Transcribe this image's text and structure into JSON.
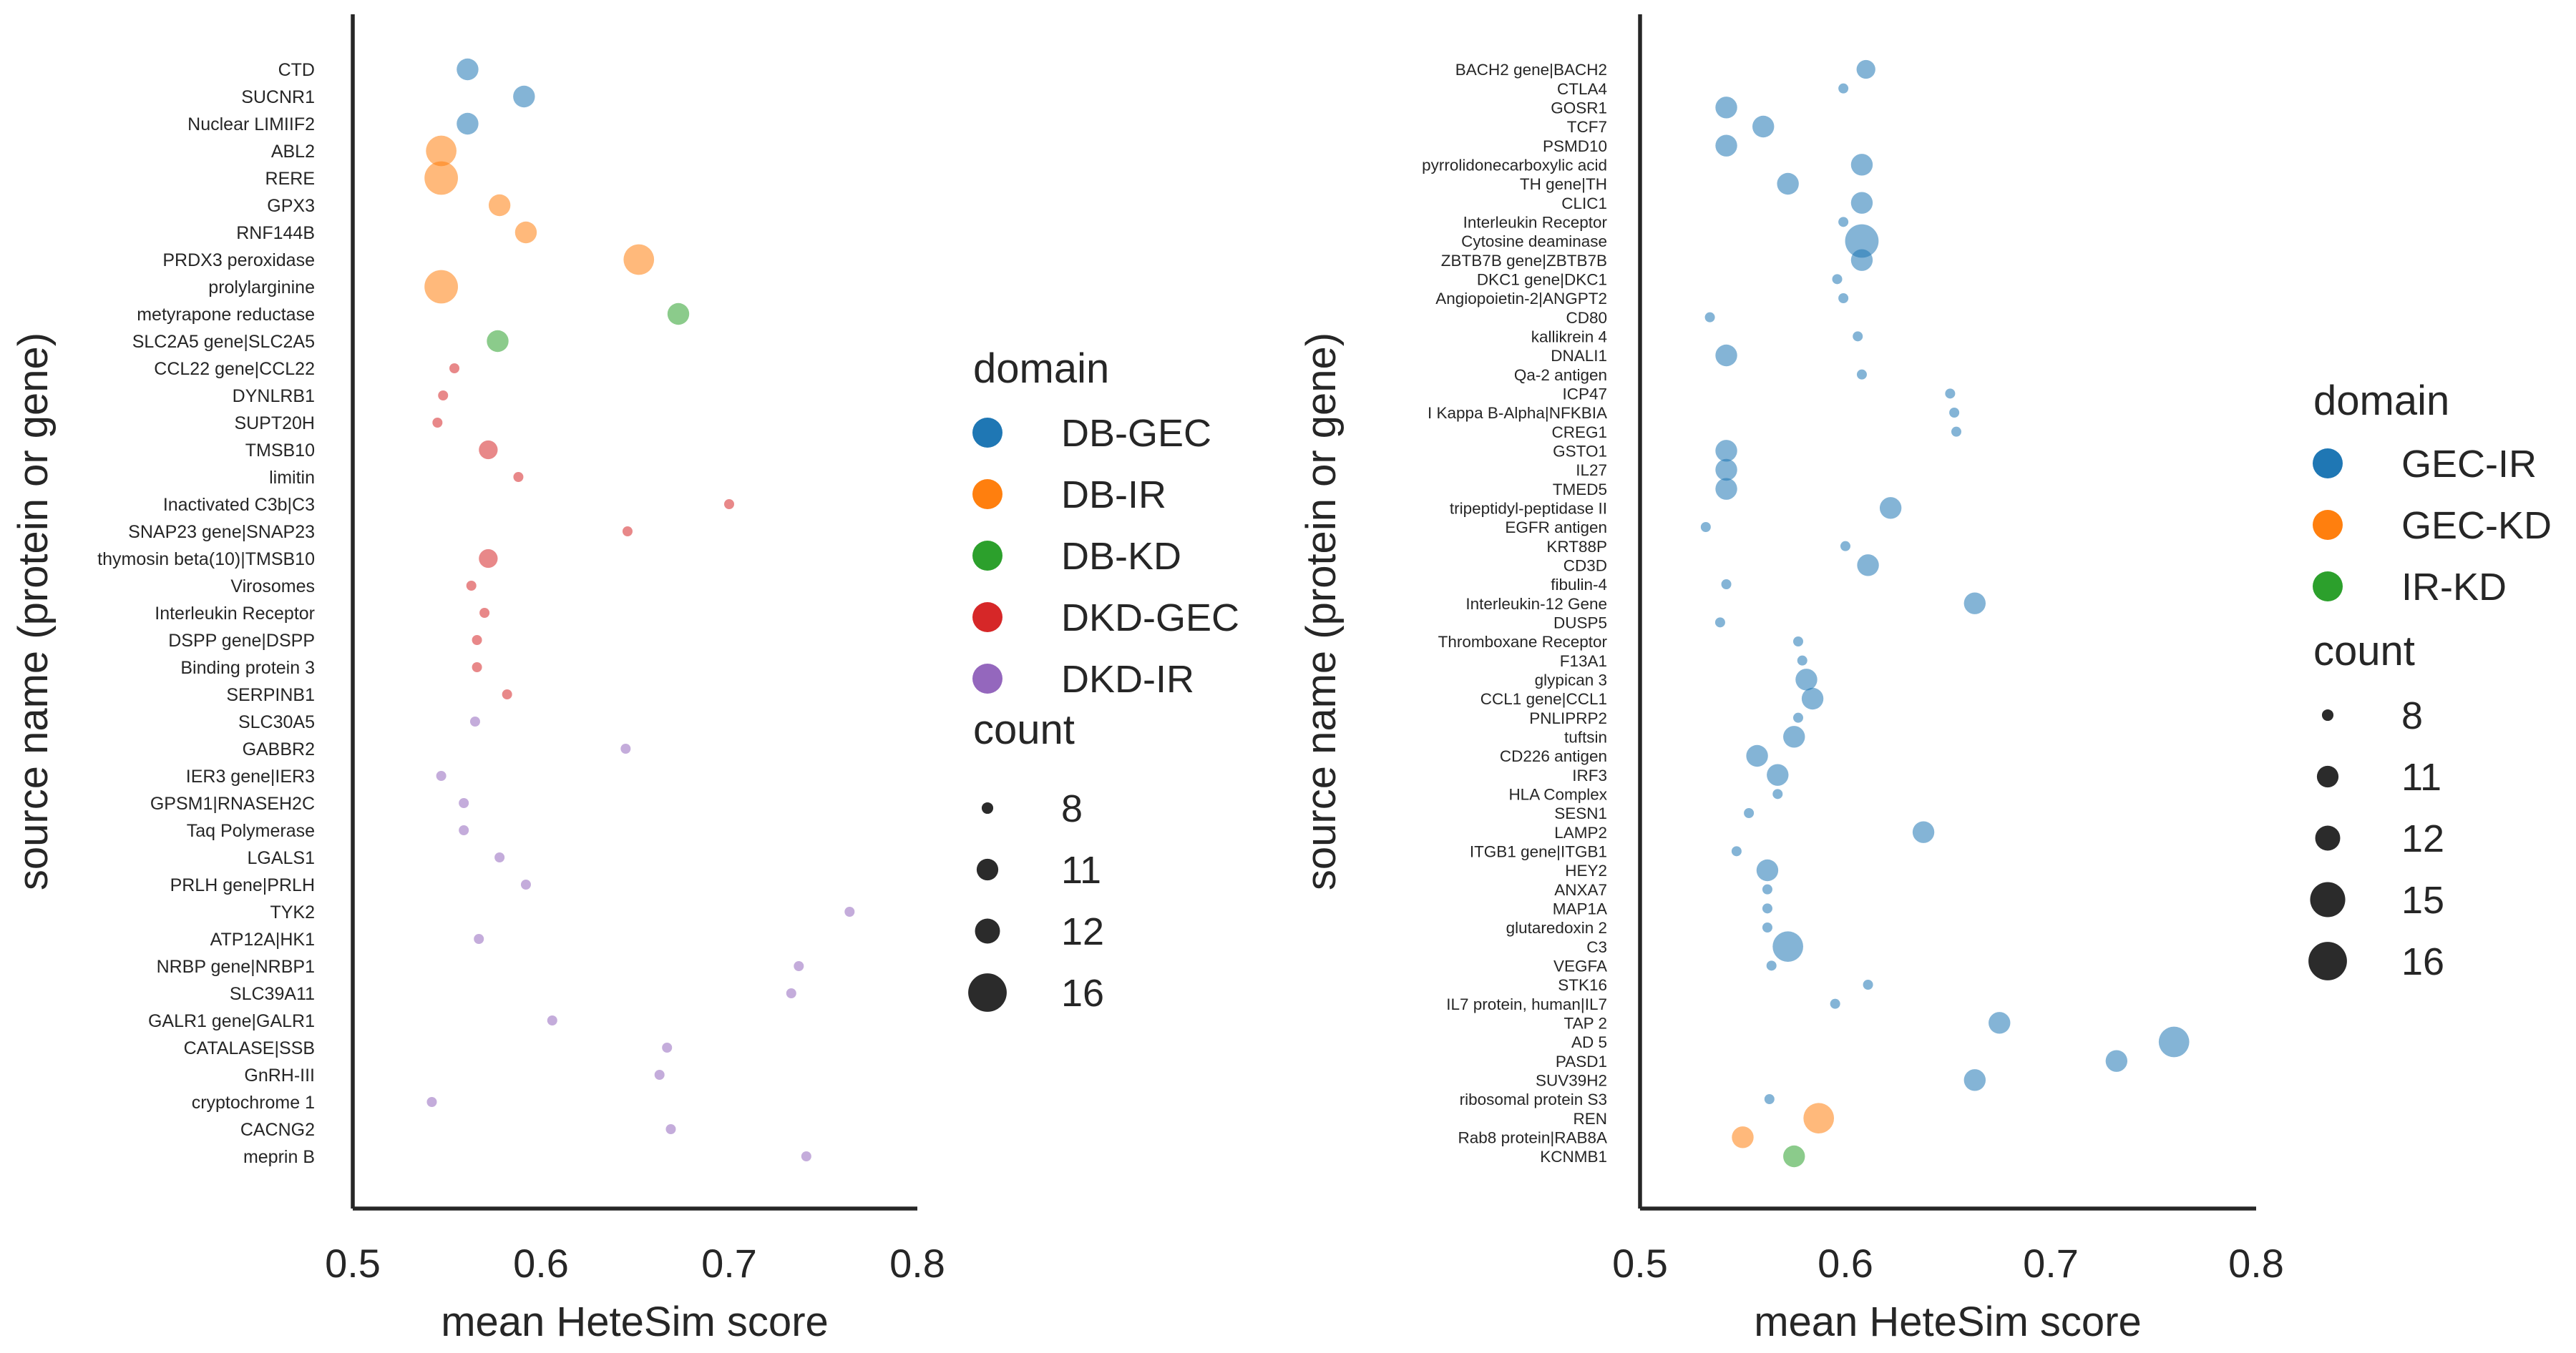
{
  "figure": {
    "colors": {
      "DB-GEC": "#1f77b4",
      "DB-IR": "#ff7f0e",
      "DB-KD": "#2ca02c",
      "DKD-GEC": "#d62728",
      "DKD-IR": "#9467bd",
      "GEC-IR": "#1f77b4",
      "GEC-KD": "#ff7f0e",
      "IR-KD": "#2ca02c"
    }
  },
  "chart_data": [
    {
      "type": "scatter",
      "title": "",
      "xlabel": "mean HeteSim score",
      "ylabel": "source name (protein or gene)",
      "xlim": [
        0.5,
        0.8
      ],
      "xticks": [
        "0.5",
        "0.6",
        "0.7",
        "0.8"
      ],
      "xtick_values": [
        0.5,
        0.6,
        0.7,
        0.8
      ],
      "grid": false,
      "legend": {
        "position": "right",
        "domain_title": "domain",
        "domains": [
          "DB-GEC",
          "DB-IR",
          "DB-KD",
          "DKD-GEC",
          "DKD-IR"
        ],
        "count_title": "count",
        "counts": [
          8,
          11,
          12,
          16
        ]
      },
      "points": [
        {
          "label": "CTD",
          "x": 0.561,
          "domain": "DB-GEC",
          "count": 12
        },
        {
          "label": "SUCNR1",
          "x": 0.591,
          "domain": "DB-GEC",
          "count": 12
        },
        {
          "label": "Nuclear LIMIIF2",
          "x": 0.561,
          "domain": "DB-GEC",
          "count": 12
        },
        {
          "label": "ABL2",
          "x": 0.547,
          "domain": "DB-IR",
          "count": 15
        },
        {
          "label": "RERE",
          "x": 0.547,
          "domain": "DB-IR",
          "count": 16
        },
        {
          "label": "GPX3",
          "x": 0.578,
          "domain": "DB-IR",
          "count": 12
        },
        {
          "label": "RNF144B",
          "x": 0.592,
          "domain": "DB-IR",
          "count": 12
        },
        {
          "label": "PRDX3 peroxidase",
          "x": 0.652,
          "domain": "DB-IR",
          "count": 15
        },
        {
          "label": "prolylarginine",
          "x": 0.547,
          "domain": "DB-IR",
          "count": 16
        },
        {
          "label": "metyrapone reductase",
          "x": 0.673,
          "domain": "DB-KD",
          "count": 12
        },
        {
          "label": "SLC2A5 gene|SLC2A5",
          "x": 0.577,
          "domain": "DB-KD",
          "count": 12
        },
        {
          "label": "CCL22 gene|CCL22",
          "x": 0.554,
          "domain": "DKD-GEC",
          "count": 8
        },
        {
          "label": "DYNLRB1",
          "x": 0.548,
          "domain": "DKD-GEC",
          "count": 8
        },
        {
          "label": "SUPT20H",
          "x": 0.545,
          "domain": "DKD-GEC",
          "count": 8
        },
        {
          "label": "TMSB10",
          "x": 0.572,
          "domain": "DKD-GEC",
          "count": 11
        },
        {
          "label": "limitin",
          "x": 0.588,
          "domain": "DKD-GEC",
          "count": 8
        },
        {
          "label": "Inactivated C3b|C3",
          "x": 0.7,
          "domain": "DKD-GEC",
          "count": 8
        },
        {
          "label": "SNAP23 gene|SNAP23",
          "x": 0.646,
          "domain": "DKD-GEC",
          "count": 8
        },
        {
          "label": "thymosin beta(10)|TMSB10",
          "x": 0.572,
          "domain": "DKD-GEC",
          "count": 11
        },
        {
          "label": "Virosomes",
          "x": 0.563,
          "domain": "DKD-GEC",
          "count": 8
        },
        {
          "label": "Interleukin Receptor",
          "x": 0.57,
          "domain": "DKD-GEC",
          "count": 8
        },
        {
          "label": "DSPP gene|DSPP",
          "x": 0.566,
          "domain": "DKD-GEC",
          "count": 8
        },
        {
          "label": "Binding protein 3",
          "x": 0.566,
          "domain": "DKD-GEC",
          "count": 8
        },
        {
          "label": "SERPINB1",
          "x": 0.582,
          "domain": "DKD-GEC",
          "count": 8
        },
        {
          "label": "SLC30A5",
          "x": 0.565,
          "domain": "DKD-IR",
          "count": 8
        },
        {
          "label": "GABBR2",
          "x": 0.645,
          "domain": "DKD-IR",
          "count": 8
        },
        {
          "label": "IER3 gene|IER3",
          "x": 0.547,
          "domain": "DKD-IR",
          "count": 8
        },
        {
          "label": "GPSM1|RNASEH2C",
          "x": 0.559,
          "domain": "DKD-IR",
          "count": 8
        },
        {
          "label": "Taq Polymerase",
          "x": 0.559,
          "domain": "DKD-IR",
          "count": 8
        },
        {
          "label": "LGALS1",
          "x": 0.578,
          "domain": "DKD-IR",
          "count": 8
        },
        {
          "label": "PRLH gene|PRLH",
          "x": 0.592,
          "domain": "DKD-IR",
          "count": 8
        },
        {
          "label": "TYK2",
          "x": 0.764,
          "domain": "DKD-IR",
          "count": 8
        },
        {
          "label": "ATP12A|HK1",
          "x": 0.567,
          "domain": "DKD-IR",
          "count": 8
        },
        {
          "label": "NRBP gene|NRBP1",
          "x": 0.737,
          "domain": "DKD-IR",
          "count": 8
        },
        {
          "label": "SLC39A11",
          "x": 0.733,
          "domain": "DKD-IR",
          "count": 8
        },
        {
          "label": "GALR1 gene|GALR1",
          "x": 0.606,
          "domain": "DKD-IR",
          "count": 8
        },
        {
          "label": "CATALASE|SSB",
          "x": 0.667,
          "domain": "DKD-IR",
          "count": 8
        },
        {
          "label": "GnRH-III",
          "x": 0.663,
          "domain": "DKD-IR",
          "count": 8
        },
        {
          "label": "cryptochrome 1",
          "x": 0.542,
          "domain": "DKD-IR",
          "count": 8
        },
        {
          "label": "CACNG2",
          "x": 0.669,
          "domain": "DKD-IR",
          "count": 8
        },
        {
          "label": "meprin B",
          "x": 0.741,
          "domain": "DKD-IR",
          "count": 8
        }
      ]
    },
    {
      "type": "scatter",
      "title": "",
      "xlabel": "mean HeteSim score",
      "ylabel": "source name (protein or gene)",
      "xlim": [
        0.5,
        0.8
      ],
      "xticks": [
        "0.5",
        "0.6",
        "0.7",
        "0.8"
      ],
      "xtick_values": [
        0.5,
        0.6,
        0.7,
        0.8
      ],
      "grid": false,
      "legend": {
        "position": "right",
        "domain_title": "domain",
        "domains": [
          "GEC-IR",
          "GEC-KD",
          "IR-KD"
        ],
        "count_title": "count",
        "counts": [
          8,
          11,
          12,
          15,
          16
        ]
      },
      "points": [
        {
          "label": "BACH2 gene|BACH2",
          "x": 0.61,
          "domain": "GEC-IR",
          "count": 11
        },
        {
          "label": "CTLA4",
          "x": 0.599,
          "domain": "GEC-IR",
          "count": 8
        },
        {
          "label": "GOSR1",
          "x": 0.542,
          "domain": "GEC-IR",
          "count": 12
        },
        {
          "label": "TCF7",
          "x": 0.56,
          "domain": "GEC-IR",
          "count": 12
        },
        {
          "label": "PSMD10",
          "x": 0.542,
          "domain": "GEC-IR",
          "count": 12
        },
        {
          "label": "pyrrolidonecarboxylic acid",
          "x": 0.608,
          "domain": "GEC-IR",
          "count": 12
        },
        {
          "label": "TH gene|TH",
          "x": 0.572,
          "domain": "GEC-IR",
          "count": 12
        },
        {
          "label": "CLIC1",
          "x": 0.608,
          "domain": "GEC-IR",
          "count": 12
        },
        {
          "label": "Interleukin Receptor",
          "x": 0.599,
          "domain": "GEC-IR",
          "count": 8
        },
        {
          "label": "Cytosine deaminase",
          "x": 0.608,
          "domain": "GEC-IR",
          "count": 16
        },
        {
          "label": "ZBTB7B gene|ZBTB7B",
          "x": 0.608,
          "domain": "GEC-IR",
          "count": 12
        },
        {
          "label": "DKC1 gene|DKC1",
          "x": 0.596,
          "domain": "GEC-IR",
          "count": 8
        },
        {
          "label": "Angiopoietin-2|ANGPT2",
          "x": 0.599,
          "domain": "GEC-IR",
          "count": 8
        },
        {
          "label": "CD80",
          "x": 0.534,
          "domain": "GEC-IR",
          "count": 8
        },
        {
          "label": "kallikrein 4",
          "x": 0.606,
          "domain": "GEC-IR",
          "count": 8
        },
        {
          "label": "DNALI1",
          "x": 0.542,
          "domain": "GEC-IR",
          "count": 12
        },
        {
          "label": "Qa-2 antigen",
          "x": 0.608,
          "domain": "GEC-IR",
          "count": 8
        },
        {
          "label": "ICP47",
          "x": 0.651,
          "domain": "GEC-IR",
          "count": 8
        },
        {
          "label": "I Kappa B-Alpha|NFKBIA",
          "x": 0.653,
          "domain": "GEC-IR",
          "count": 8
        },
        {
          "label": "CREG1",
          "x": 0.654,
          "domain": "GEC-IR",
          "count": 8
        },
        {
          "label": "GSTO1",
          "x": 0.542,
          "domain": "GEC-IR",
          "count": 12
        },
        {
          "label": "IL27",
          "x": 0.542,
          "domain": "GEC-IR",
          "count": 12
        },
        {
          "label": "TMED5",
          "x": 0.542,
          "domain": "GEC-IR",
          "count": 12
        },
        {
          "label": "tripeptidyl-peptidase II",
          "x": 0.622,
          "domain": "GEC-IR",
          "count": 12
        },
        {
          "label": "EGFR antigen",
          "x": 0.532,
          "domain": "GEC-IR",
          "count": 8
        },
        {
          "label": "KRT88P",
          "x": 0.6,
          "domain": "GEC-IR",
          "count": 8
        },
        {
          "label": "CD3D",
          "x": 0.611,
          "domain": "GEC-IR",
          "count": 12
        },
        {
          "label": "fibulin-4",
          "x": 0.542,
          "domain": "GEC-IR",
          "count": 8
        },
        {
          "label": "Interleukin-12 Gene",
          "x": 0.663,
          "domain": "GEC-IR",
          "count": 12
        },
        {
          "label": "DUSP5",
          "x": 0.539,
          "domain": "GEC-IR",
          "count": 8
        },
        {
          "label": "Thromboxane Receptor",
          "x": 0.577,
          "domain": "GEC-IR",
          "count": 8
        },
        {
          "label": "F13A1",
          "x": 0.579,
          "domain": "GEC-IR",
          "count": 8
        },
        {
          "label": "glypican 3",
          "x": 0.581,
          "domain": "GEC-IR",
          "count": 12
        },
        {
          "label": "CCL1 gene|CCL1",
          "x": 0.584,
          "domain": "GEC-IR",
          "count": 12
        },
        {
          "label": "PNLIPRP2",
          "x": 0.577,
          "domain": "GEC-IR",
          "count": 8
        },
        {
          "label": "tuftsin",
          "x": 0.575,
          "domain": "GEC-IR",
          "count": 12
        },
        {
          "label": "CD226 antigen",
          "x": 0.557,
          "domain": "GEC-IR",
          "count": 12
        },
        {
          "label": "IRF3",
          "x": 0.567,
          "domain": "GEC-IR",
          "count": 12
        },
        {
          "label": "HLA Complex",
          "x": 0.567,
          "domain": "GEC-IR",
          "count": 8
        },
        {
          "label": "SESN1",
          "x": 0.553,
          "domain": "GEC-IR",
          "count": 8
        },
        {
          "label": "LAMP2",
          "x": 0.638,
          "domain": "GEC-IR",
          "count": 12
        },
        {
          "label": "ITGB1 gene|ITGB1",
          "x": 0.547,
          "domain": "GEC-IR",
          "count": 8
        },
        {
          "label": "HEY2",
          "x": 0.562,
          "domain": "GEC-IR",
          "count": 12
        },
        {
          "label": "ANXA7",
          "x": 0.562,
          "domain": "GEC-IR",
          "count": 8
        },
        {
          "label": "MAP1A",
          "x": 0.562,
          "domain": "GEC-IR",
          "count": 8
        },
        {
          "label": "glutaredoxin 2",
          "x": 0.562,
          "domain": "GEC-IR",
          "count": 8
        },
        {
          "label": "C3",
          "x": 0.572,
          "domain": "GEC-IR",
          "count": 15
        },
        {
          "label": "VEGFA",
          "x": 0.564,
          "domain": "GEC-IR",
          "count": 8
        },
        {
          "label": "STK16",
          "x": 0.611,
          "domain": "GEC-IR",
          "count": 8
        },
        {
          "label": "IL7 protein, human|IL7",
          "x": 0.595,
          "domain": "GEC-IR",
          "count": 8
        },
        {
          "label": "TAP 2",
          "x": 0.675,
          "domain": "GEC-IR",
          "count": 12
        },
        {
          "label": "AD 5",
          "x": 0.76,
          "domain": "GEC-IR",
          "count": 15
        },
        {
          "label": "PASD1",
          "x": 0.732,
          "domain": "GEC-IR",
          "count": 12
        },
        {
          "label": "SUV39H2",
          "x": 0.663,
          "domain": "GEC-IR",
          "count": 12
        },
        {
          "label": "ribosomal protein S3",
          "x": 0.563,
          "domain": "GEC-IR",
          "count": 8
        },
        {
          "label": "REN",
          "x": 0.587,
          "domain": "GEC-KD",
          "count": 15
        },
        {
          "label": "Rab8 protein|RAB8A",
          "x": 0.55,
          "domain": "GEC-KD",
          "count": 12
        },
        {
          "label": "KCNMB1",
          "x": 0.575,
          "domain": "IR-KD",
          "count": 12
        }
      ]
    }
  ]
}
